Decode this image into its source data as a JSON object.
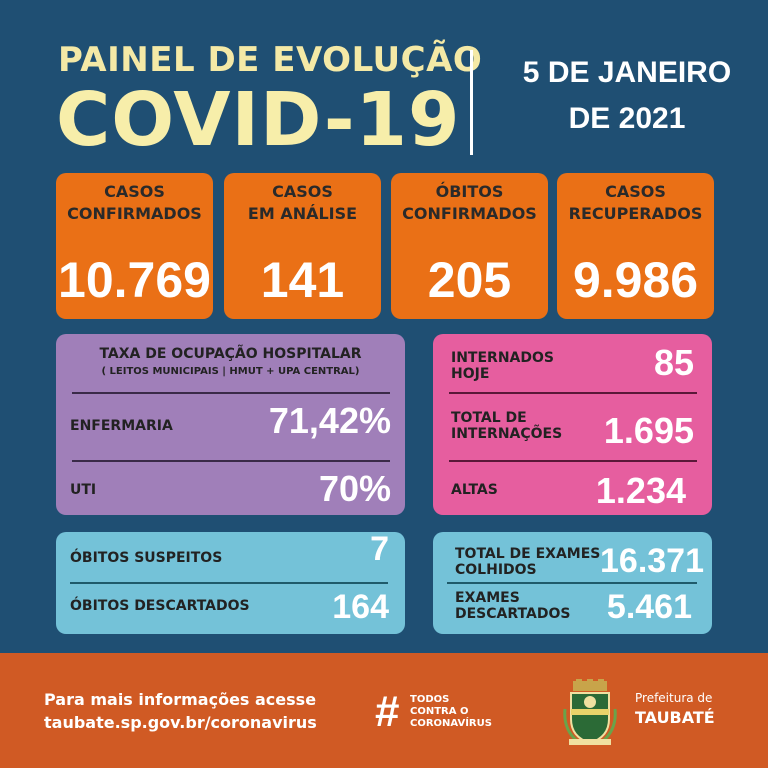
{
  "header": {
    "title_top": "PAINEL DE EVOLUÇÃO",
    "title_main": "COVID-19",
    "date_line1": "5 DE JANEIRO",
    "date_line2": "DE 2021"
  },
  "kpis": [
    {
      "label": "CASOS\nCONFIRMADOS",
      "value": "10.769"
    },
    {
      "label": "CASOS\nEM ANÁLISE",
      "value": "141"
    },
    {
      "label": "ÓBITOS\nCONFIRMADOS",
      "value": "205"
    },
    {
      "label": "CASOS\nRECUPERADOS",
      "value": "9.986"
    }
  ],
  "hospital": {
    "heading": "TAXA DE OCUPAÇÃO HOSPITALAR",
    "subheading": "( LEITOS MUNICIPAIS | HMUT + UPA CENTRAL)",
    "rows": [
      {
        "label": "ENFERMARIA",
        "value": "71,42%"
      },
      {
        "label": "UTI",
        "value": "70%"
      }
    ]
  },
  "internacoes": {
    "rows": [
      {
        "label_line1": "INTERNADOS",
        "label_line2": "HOJE",
        "value": "85"
      },
      {
        "label_line1": "TOTAL DE",
        "label_line2": "INTERNAÇÕES",
        "value": "1.695"
      },
      {
        "label_line1": "ALTAS",
        "label_line2": "",
        "value": "1.234"
      }
    ]
  },
  "obitos": {
    "rows": [
      {
        "label": "ÓBITOS SUSPEITOS",
        "value": "7"
      },
      {
        "label": "ÓBITOS DESCARTADOS",
        "value": "164"
      }
    ]
  },
  "exames": {
    "rows": [
      {
        "label_line1": "TOTAL DE EXAMES",
        "label_line2": "COLHIDOS",
        "value": "16.371"
      },
      {
        "label_line1": "EXAMES",
        "label_line2": "DESCARTADOS",
        "value": "5.461"
      }
    ]
  },
  "footer": {
    "info_line1": "Para mais informações acesse",
    "info_line2": "taubate.sp.gov.br/coronavirus",
    "hashtag": "#",
    "campaign": "TODOS\nCONTRA O\nCORONAVÍRUS",
    "prefeitura_line1": "Prefeitura de",
    "prefeitura_line2": "TAUBATÉ"
  },
  "colors": {
    "background": "#1f4f73",
    "title": "#f4e9a6",
    "kpi": "#ea7016",
    "hospital_panel": "#a07fb9",
    "internacoes_panel": "#e65e9f",
    "cyan_panel": "#74c2d8",
    "footer": "#d05a24"
  }
}
